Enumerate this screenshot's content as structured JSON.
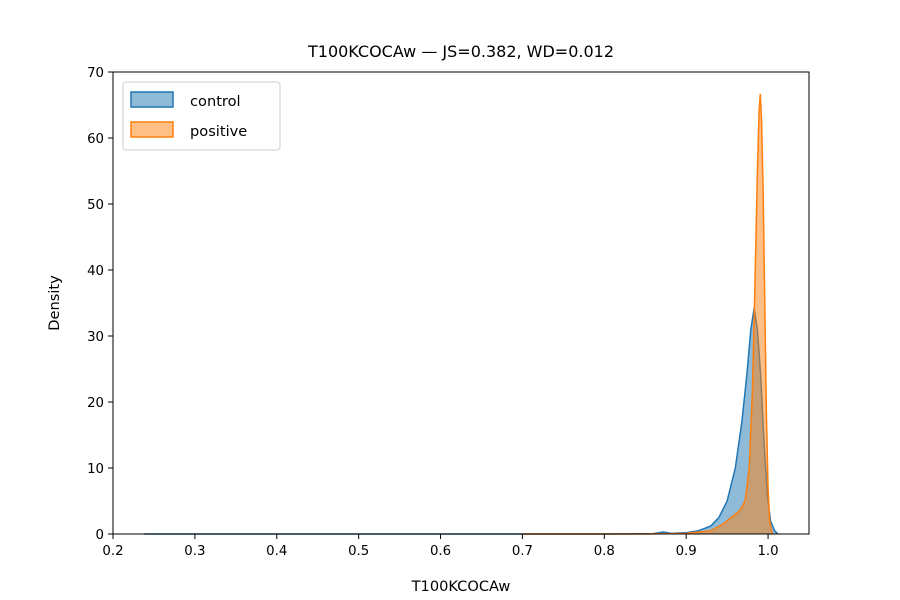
{
  "chart_data": {
    "type": "area",
    "title": "T100KCOCAw — JS=0.382, WD=0.012",
    "xlabel": "T100KCOCAw",
    "ylabel": "Density",
    "xlim": [
      0.2,
      1.05
    ],
    "ylim": [
      0,
      70
    ],
    "xticks": [
      "0.2",
      "0.3",
      "0.4",
      "0.5",
      "0.6",
      "0.7",
      "0.8",
      "0.9",
      "1.0"
    ],
    "yticks": [
      "0",
      "10",
      "20",
      "30",
      "40",
      "50",
      "60",
      "70"
    ],
    "legend_position": "upper-left",
    "grid": false,
    "series": [
      {
        "name": "control",
        "color": "#1f77b4",
        "fill": "#1f77b4",
        "points": [
          [
            0.238,
            0.0
          ],
          [
            0.6,
            0.0
          ],
          [
            0.8,
            0.0
          ],
          [
            0.86,
            0.05
          ],
          [
            0.872,
            0.3
          ],
          [
            0.882,
            0.1
          ],
          [
            0.9,
            0.2
          ],
          [
            0.915,
            0.5
          ],
          [
            0.93,
            1.2
          ],
          [
            0.94,
            2.5
          ],
          [
            0.95,
            5.0
          ],
          [
            0.96,
            10.0
          ],
          [
            0.968,
            17.0
          ],
          [
            0.974,
            24.0
          ],
          [
            0.979,
            31.0
          ],
          [
            0.983,
            34.2
          ],
          [
            0.987,
            31.0
          ],
          [
            0.991,
            24.0
          ],
          [
            0.995,
            14.0
          ],
          [
            0.999,
            6.0
          ],
          [
            1.003,
            2.0
          ],
          [
            1.008,
            0.5
          ],
          [
            1.012,
            0.0
          ]
        ]
      },
      {
        "name": "positive",
        "color": "#ff7f0e",
        "fill": "#ff7f0e",
        "points": [
          [
            0.7,
            0.0
          ],
          [
            0.85,
            0.0
          ],
          [
            0.9,
            0.1
          ],
          [
            0.93,
            0.5
          ],
          [
            0.945,
            1.5
          ],
          [
            0.955,
            2.5
          ],
          [
            0.965,
            3.5
          ],
          [
            0.972,
            5.0
          ],
          [
            0.977,
            10.0
          ],
          [
            0.981,
            22.0
          ],
          [
            0.984,
            38.0
          ],
          [
            0.987,
            55.0
          ],
          [
            0.989,
            64.0
          ],
          [
            0.9905,
            66.7
          ],
          [
            0.992,
            63.0
          ],
          [
            0.994,
            52.0
          ],
          [
            0.996,
            35.0
          ],
          [
            0.998,
            18.0
          ],
          [
            1.0,
            7.0
          ],
          [
            1.002,
            2.0
          ],
          [
            1.004,
            0.5
          ],
          [
            1.006,
            0.0
          ]
        ]
      }
    ]
  }
}
